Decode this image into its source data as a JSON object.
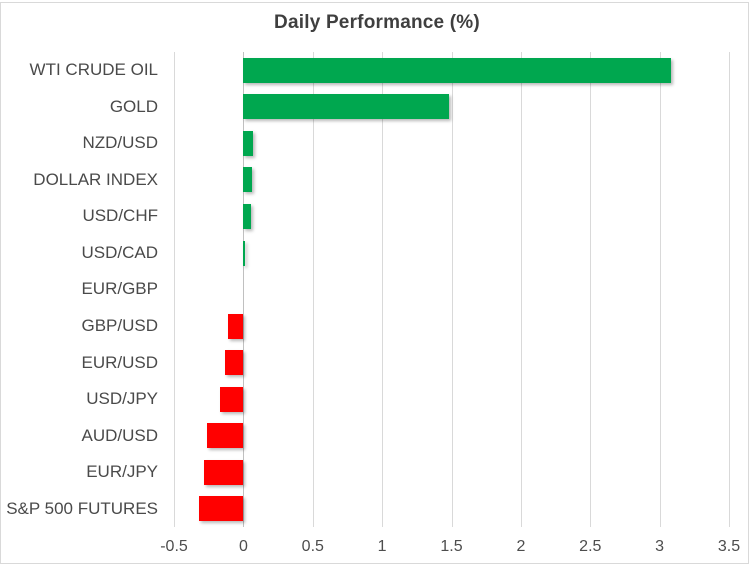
{
  "chart_data": {
    "type": "bar",
    "orientation": "horizontal",
    "title": "Daily Performance (%)",
    "categories": [
      "WTI CRUDE OIL",
      "GOLD",
      "NZD/USD",
      "DOLLAR INDEX",
      "USD/CHF",
      "USD/CAD",
      "EUR/GBP",
      "GBP/USD",
      "EUR/USD",
      "USD/JPY",
      "AUD/USD",
      "EUR/JPY",
      "S&P 500 FUTURES"
    ],
    "values": [
      3.08,
      1.48,
      0.07,
      0.065,
      0.055,
      0.015,
      0.0,
      -0.11,
      -0.135,
      -0.17,
      -0.26,
      -0.285,
      -0.32
    ],
    "xlabel": "",
    "ylabel": "",
    "xlim": [
      -0.5,
      3.5
    ],
    "xticks": [
      -0.5,
      0,
      0.5,
      1,
      1.5,
      2,
      2.5,
      3,
      3.5
    ],
    "xtick_labels": [
      "-0.5",
      "0",
      "0.5",
      "1",
      "1.5",
      "2",
      "2.5",
      "3",
      "3.5"
    ],
    "grid": "vertical-only",
    "legend": "none",
    "colors": {
      "positive": "#00A74F",
      "negative": "#FF0000",
      "gridline": "#D9D9D9",
      "zero_axis_line": "#C0C0C0",
      "title": "#3F3F3F",
      "category_label": "#4A4A4A",
      "tick_label": "#4D4D4D",
      "frame_border": "#D9D9D9",
      "background": "#FFFFFF"
    }
  }
}
